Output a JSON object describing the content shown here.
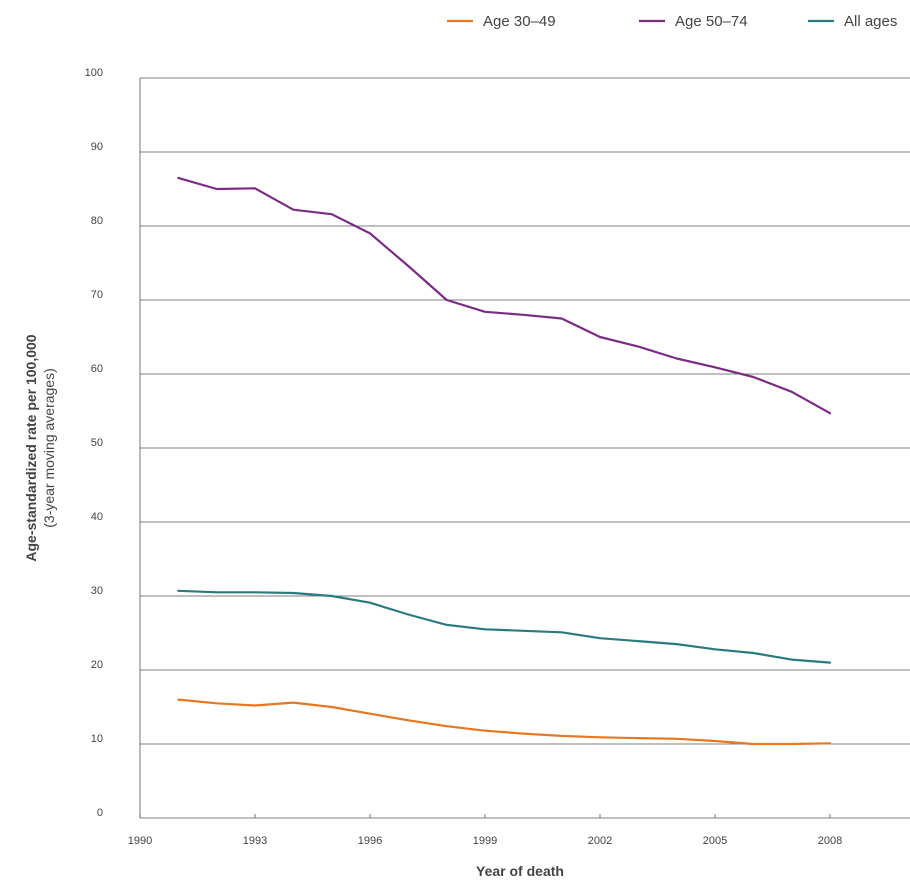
{
  "chart_data": {
    "type": "line",
    "xlabel": "Year of death",
    "ylabel": "Age-standardized rate per 100,000",
    "ylabel_sub": "(3-year moving averages)",
    "xlim": [
      1990,
      2010
    ],
    "ylim": [
      0,
      100
    ],
    "x_ticks": [
      1990,
      1993,
      1996,
      1999,
      2002,
      2005,
      2008
    ],
    "y_ticks": [
      0,
      10,
      20,
      30,
      40,
      50,
      60,
      70,
      80,
      90,
      100
    ],
    "grid": "horizontal",
    "legend_position": "top-right",
    "x": [
      1991,
      1992,
      1993,
      1994,
      1995,
      1996,
      1997,
      1998,
      1999,
      2000,
      2001,
      2002,
      2003,
      2004,
      2005,
      2006,
      2007,
      2008
    ],
    "series": [
      {
        "name": "Age 30–49",
        "color": "#e87722",
        "values": [
          16.0,
          15.5,
          15.2,
          15.6,
          15.0,
          14.1,
          13.2,
          12.4,
          11.8,
          11.4,
          11.1,
          10.9,
          10.8,
          10.7,
          10.4,
          10.0,
          10.0,
          10.1
        ]
      },
      {
        "name": "Age 50–74",
        "color": "#7b2c83",
        "values": [
          86.5,
          85.0,
          85.1,
          82.2,
          81.6,
          79.0,
          74.6,
          70.0,
          68.4,
          68.0,
          67.5,
          65.0,
          63.7,
          62.1,
          60.9,
          59.6,
          57.6,
          54.7
        ]
      },
      {
        "name": "All ages",
        "color": "#2a7b7f",
        "values": [
          30.7,
          30.5,
          30.5,
          30.4,
          30.0,
          29.1,
          27.5,
          26.1,
          25.5,
          25.3,
          25.1,
          24.3,
          23.9,
          23.5,
          22.8,
          22.3,
          21.4,
          21.0
        ]
      }
    ]
  }
}
